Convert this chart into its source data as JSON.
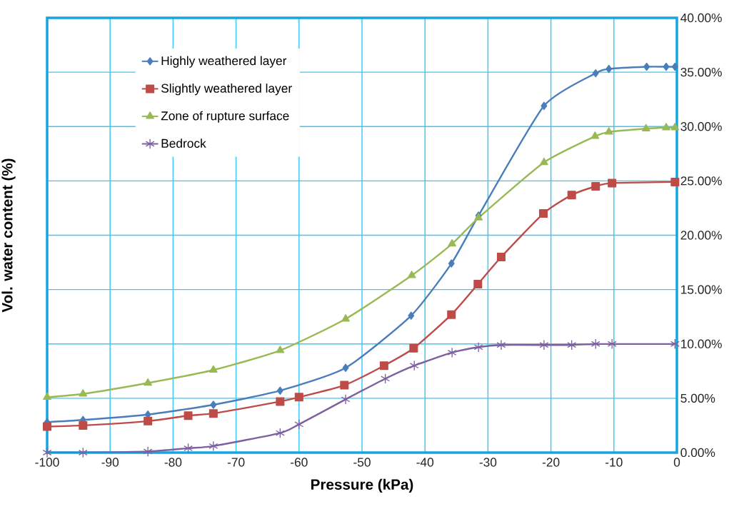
{
  "chart_data": {
    "type": "line",
    "xlabel": "Pressure (kPa)",
    "ylabel": "Vol. water content (%)",
    "xlim": [
      -100,
      0
    ],
    "ylim": [
      0,
      40
    ],
    "xticks": [
      -100,
      -90,
      -80,
      -70,
      -60,
      -50,
      -40,
      -30,
      -20,
      -10,
      0
    ],
    "yticks": [
      {
        "value": 0,
        "label": "0.00%"
      },
      {
        "value": 5,
        "label": "5.00%"
      },
      {
        "value": 10,
        "label": "10.00%"
      },
      {
        "value": 15,
        "label": "15.00%"
      },
      {
        "value": 20,
        "label": "20.00%"
      },
      {
        "value": 25,
        "label": "25.00%"
      },
      {
        "value": 30,
        "label": "30.00%"
      },
      {
        "value": 35,
        "label": "35.00%"
      },
      {
        "value": 40,
        "label": "40.00%"
      }
    ],
    "grid": true,
    "legend": "top left",
    "series": [
      {
        "name": "Highly weathered layer",
        "color": "#4a7ebb",
        "marker": "diamond",
        "x": [
          -100,
          -94.3,
          -84,
          -73.6,
          -63,
          -52.6,
          -42.2,
          -35.8,
          -31.5,
          -21.1,
          -12.9,
          -10.8,
          -4.8,
          -1.7,
          -0.3
        ],
        "values": [
          2.8,
          3.0,
          3.5,
          4.4,
          5.7,
          7.8,
          12.6,
          17.4,
          21.8,
          31.9,
          34.9,
          35.3,
          35.5,
          35.5,
          35.5
        ]
      },
      {
        "name": "Slightly weathered layer",
        "color": "#be4b48",
        "marker": "square",
        "x": [
          -100,
          -94.3,
          -84,
          -77.6,
          -73.6,
          -63,
          -60,
          -52.8,
          -46.5,
          -41.8,
          -35.8,
          -31.6,
          -27.9,
          -21.2,
          -16.7,
          -12.9,
          -10.3,
          -0.3
        ],
        "values": [
          2.4,
          2.5,
          2.9,
          3.4,
          3.6,
          4.7,
          5.1,
          6.2,
          8.0,
          9.6,
          12.7,
          15.5,
          18.0,
          22.0,
          23.7,
          24.5,
          24.8,
          24.9
        ]
      },
      {
        "name": "Zone of rupture surface",
        "color": "#98b954",
        "marker": "triangle",
        "x": [
          -100,
          -94.3,
          -84,
          -73.6,
          -63,
          -52.6,
          -42.1,
          -35.7,
          -31.5,
          -21.1,
          -13.0,
          -10.8,
          -4.9,
          -1.7,
          -0.3
        ],
        "values": [
          5.1,
          5.4,
          6.4,
          7.6,
          9.4,
          12.3,
          16.3,
          19.2,
          21.6,
          26.7,
          29.1,
          29.5,
          29.8,
          29.9,
          29.9
        ]
      },
      {
        "name": "Bedrock",
        "color": "#7d60a0",
        "marker": "cross",
        "x": [
          -100,
          -94.3,
          -84,
          -77.6,
          -73.6,
          -63,
          -60,
          -52.6,
          -46.3,
          -41.7,
          -35.7,
          -31.5,
          -27.9,
          -21.1,
          -16.7,
          -12.9,
          -10.3,
          -0.3
        ],
        "values": [
          0.0,
          0.0,
          0.1,
          0.4,
          0.6,
          1.8,
          2.6,
          4.9,
          6.8,
          8.0,
          9.2,
          9.7,
          9.9,
          9.9,
          9.9,
          10.0,
          10.0,
          10.0
        ]
      }
    ]
  }
}
